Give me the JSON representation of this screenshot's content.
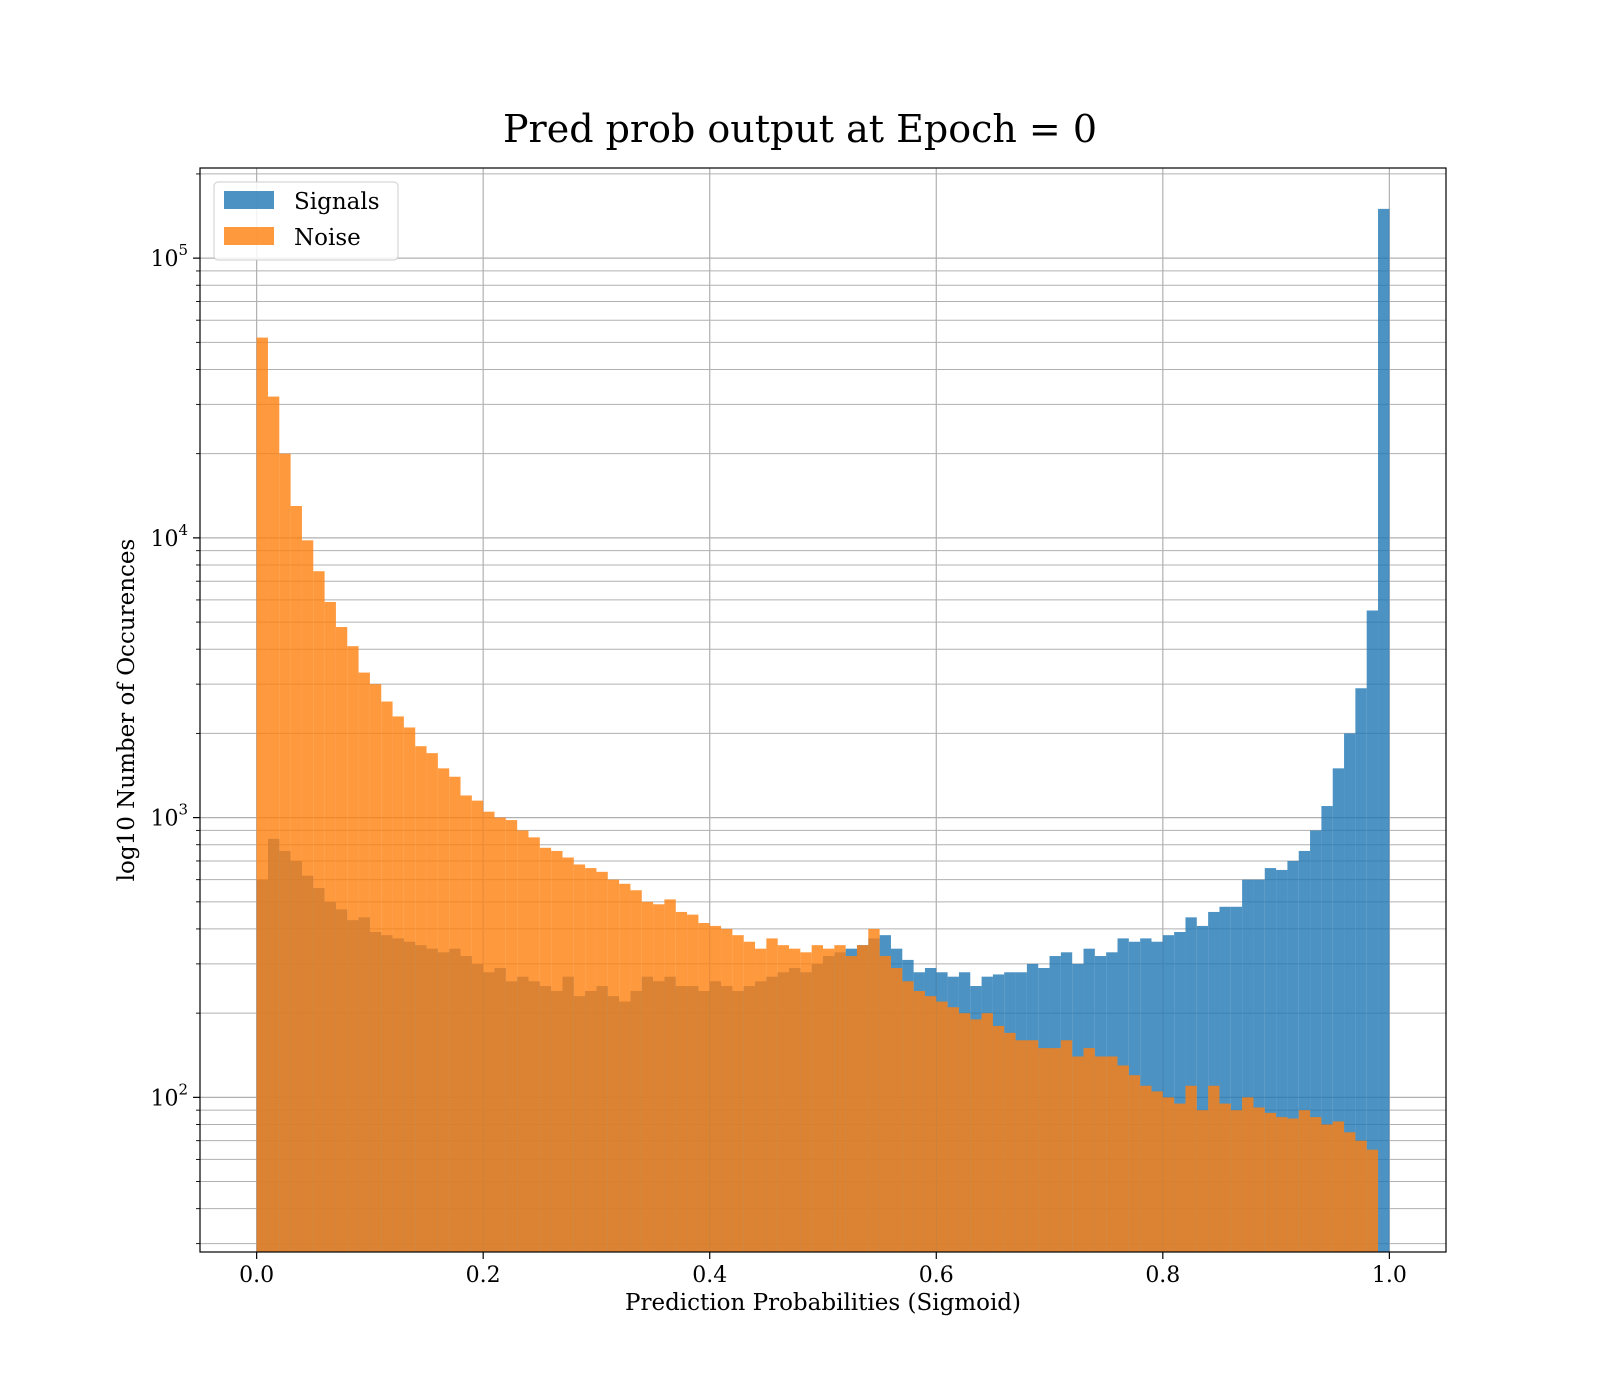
{
  "chart_data": {
    "type": "bar",
    "title": "Pred prob output at Epoch = 0",
    "xlabel": "Prediction Probabilities (Sigmoid)",
    "ylabel": "log10 Number of Occurences",
    "xlim": [
      -0.05,
      1.05
    ],
    "ylim": [
      28,
      210000
    ],
    "yscale": "log",
    "grid": true,
    "legend_position": "top-left",
    "x_ticks": [
      {
        "value": 0.0,
        "label": "0.0"
      },
      {
        "value": 0.2,
        "label": "0.2"
      },
      {
        "value": 0.4,
        "label": "0.4"
      },
      {
        "value": 0.6,
        "label": "0.6"
      },
      {
        "value": 0.8,
        "label": "0.8"
      },
      {
        "value": 1.0,
        "label": "1.0"
      }
    ],
    "y_ticks": [
      {
        "value": 100,
        "base": "10",
        "exp": "2"
      },
      {
        "value": 1000,
        "base": "10",
        "exp": "3"
      },
      {
        "value": 10000,
        "base": "10",
        "exp": "4"
      },
      {
        "value": 100000,
        "base": "10",
        "exp": "5"
      }
    ],
    "bin_edges_range": [
      0.0,
      1.0
    ],
    "bins": 100,
    "series": [
      {
        "name": "Signals",
        "color": "#1f77b4",
        "opacity": 0.8,
        "values": [
          600,
          840,
          760,
          700,
          620,
          560,
          500,
          470,
          430,
          440,
          390,
          380,
          370,
          360,
          350,
          340,
          330,
          340,
          320,
          300,
          280,
          290,
          260,
          270,
          260,
          250,
          240,
          270,
          230,
          240,
          250,
          230,
          220,
          240,
          270,
          260,
          270,
          250,
          250,
          240,
          260,
          250,
          240,
          250,
          260,
          270,
          280,
          290,
          280,
          300,
          320,
          330,
          340,
          350,
          370,
          380,
          340,
          310,
          280,
          290,
          280,
          270,
          280,
          250,
          270,
          275,
          280,
          280,
          300,
          290,
          320,
          330,
          300,
          340,
          320,
          330,
          370,
          360,
          370,
          360,
          380,
          390,
          440,
          410,
          460,
          480,
          480,
          600,
          600,
          660,
          650,
          700,
          760,
          900,
          1100,
          1500,
          2000,
          2900,
          5500,
          150000
        ]
      },
      {
        "name": "Noise",
        "color": "#ff7f0e",
        "opacity": 0.8,
        "values": [
          52000,
          32000,
          20000,
          13000,
          9800,
          7600,
          5900,
          4800,
          4100,
          3300,
          3000,
          2600,
          2300,
          2100,
          1800,
          1700,
          1500,
          1400,
          1200,
          1150,
          1050,
          1000,
          980,
          900,
          850,
          780,
          760,
          720,
          680,
          660,
          640,
          600,
          580,
          550,
          500,
          490,
          510,
          460,
          450,
          420,
          410,
          400,
          380,
          360,
          340,
          370,
          350,
          340,
          330,
          350,
          340,
          350,
          320,
          350,
          400,
          320,
          290,
          260,
          240,
          230,
          220,
          210,
          200,
          190,
          200,
          180,
          170,
          160,
          160,
          150,
          150,
          160,
          140,
          150,
          140,
          140,
          130,
          120,
          110,
          105,
          100,
          95,
          110,
          90,
          110,
          95,
          90,
          100,
          92,
          88,
          85,
          84,
          90,
          85,
          80,
          82,
          75,
          70,
          65,
          0
        ]
      }
    ]
  }
}
